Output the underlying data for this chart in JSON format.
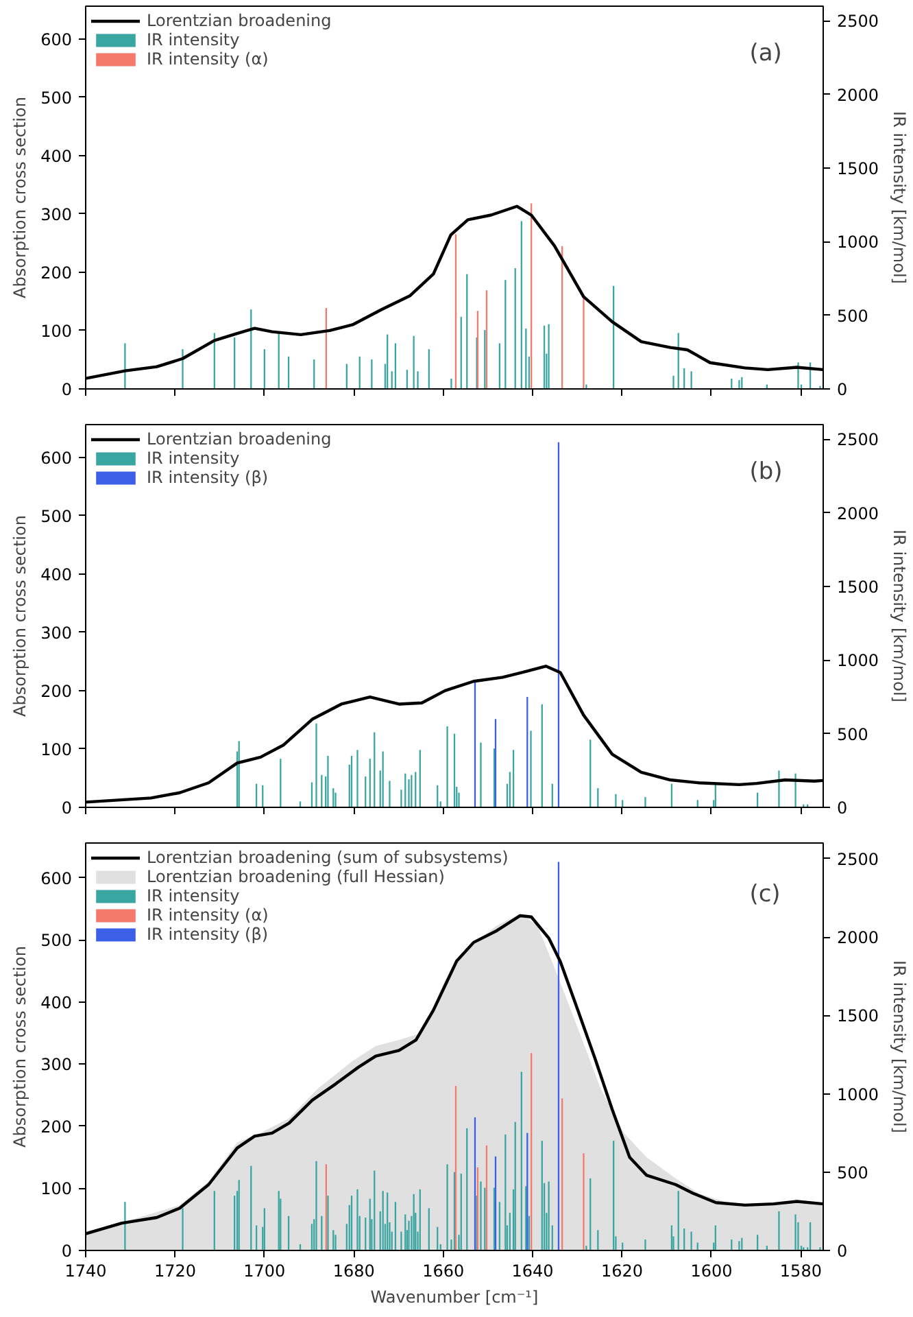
{
  "chart_data": [
    {
      "type": "bar",
      "ylabel": "Absorption cross section",
      "y2label": "IR intensity [km/mol]",
      "annotations": [
        "(a)"
      ],
      "xlim": [
        1740,
        1575
      ],
      "xticks": [
        1740,
        1720,
        1700,
        1680,
        1660,
        1640,
        1620,
        1600,
        1580
      ],
      "ylim": [
        0,
        656
      ],
      "yticks": [
        0,
        100,
        200,
        300,
        400,
        500,
        600
      ],
      "y2lim": [
        0,
        2600
      ],
      "y2ticks": [
        0,
        500,
        1000,
        1500,
        2000,
        2500
      ],
      "tick_labels": "y",
      "legend": "top left",
      "series": [
        {
          "type": "line",
          "name": "Lorentzian broadening",
          "color": "#000000",
          "x": [
            1740,
            1731.2,
            1724.1,
            1718.3,
            1711.2,
            1706.1,
            1702.2,
            1698.3,
            1691.9,
            1685.4,
            1680.3,
            1673.8,
            1667.4,
            1662.2,
            1658.3,
            1654.5,
            1649.3,
            1643.5,
            1640.3,
            1635.1,
            1628.6,
            1622.2,
            1615.7,
            1609.2,
            1605.4,
            1600.3,
            1592.5,
            1587.4,
            1580.9,
            1575
          ],
          "values": [
            18,
            31,
            38,
            52,
            83,
            95,
            104,
            98,
            93,
            100,
            110,
            136,
            160,
            197,
            264,
            290,
            298,
            313,
            298,
            245,
            158,
            115,
            81,
            71,
            67,
            45,
            36,
            33,
            37,
            33
          ]
        },
        {
          "axis": "y2",
          "name": "IR intensity",
          "color": "#3aa6a2",
          "x": [
            1731.2,
            1718.3,
            1711.2,
            1706.7,
            1703.0,
            1700.0,
            1696.8,
            1694.6,
            1688.9,
            1681.6,
            1678.7,
            1676.0,
            1673.0,
            1672.5,
            1671.5,
            1670.7,
            1668.1,
            1666.6,
            1665.7,
            1663.2,
            1658.2,
            1656.0,
            1654.7,
            1652.5,
            1650.7,
            1647.4,
            1646.1,
            1643.9,
            1642.5,
            1641.5,
            1640.8,
            1637.4,
            1636.9,
            1636.4,
            1628.0,
            1621.9,
            1608.5,
            1607.4,
            1606.1,
            1604.5,
            1595.5,
            1593.8,
            1593.2,
            1587.6,
            1580.6,
            1579.9,
            1577.9,
            1575.7
          ],
          "values": [
            310,
            270,
            380,
            350,
            540,
            270,
            380,
            220,
            200,
            170,
            220,
            200,
            170,
            370,
            120,
            310,
            130,
            360,
            120,
            270,
            70,
            490,
            780,
            350,
            400,
            310,
            740,
            820,
            1140,
            410,
            220,
            430,
            240,
            440,
            30,
            700,
            90,
            380,
            140,
            120,
            70,
            60,
            80,
            30,
            180,
            30,
            180,
            20
          ]
        },
        {
          "axis": "y2",
          "name": "IR intensity (α)",
          "color": "#f47a6b",
          "x": [
            1686.2,
            1657.2,
            1652.3,
            1650.3,
            1640.3,
            1633.4,
            1628.6
          ],
          "values": [
            550,
            1050,
            530,
            670,
            1260,
            970,
            620
          ]
        }
      ]
    },
    {
      "type": "bar",
      "ylabel": "Absorption cross section",
      "y2label": "IR intensity [km/mol]",
      "annotations": [
        "(b)"
      ],
      "xlim": [
        1740,
        1575
      ],
      "xticks": [
        1740,
        1720,
        1700,
        1680,
        1660,
        1640,
        1620,
        1600,
        1580
      ],
      "ylim": [
        0,
        656
      ],
      "yticks": [
        0,
        100,
        200,
        300,
        400,
        500,
        600
      ],
      "y2lim": [
        0,
        2600
      ],
      "y2ticks": [
        0,
        500,
        1000,
        1500,
        2000,
        2500
      ],
      "tick_labels": "y",
      "legend": "top left",
      "series": [
        {
          "type": "line",
          "name": "Lorentzian broadening",
          "color": "#000000",
          "x": [
            1740,
            1725.4,
            1719,
            1712.5,
            1706.1,
            1700.9,
            1695.7,
            1689.3,
            1682.8,
            1676.4,
            1669.9,
            1664.8,
            1659.6,
            1653.2,
            1646.7,
            1641.5,
            1637.0,
            1633.8,
            1628.6,
            1622.2,
            1615.7,
            1609.2,
            1602.8,
            1593.8,
            1589.9,
            1583.5,
            1577,
            1575
          ],
          "values": [
            9,
            16,
            25,
            42,
            76,
            86,
            107,
            151,
            177,
            189,
            177,
            179,
            200,
            216,
            223,
            233,
            242,
            231,
            158,
            91,
            60,
            47,
            42,
            39,
            41,
            47,
            45,
            46
          ]
        },
        {
          "axis": "y2",
          "name": "IR intensity",
          "color": "#3aa6a2",
          "x": [
            1706.1,
            1705.7,
            1701.8,
            1700.4,
            1696.4,
            1692.0,
            1689.4,
            1688.4,
            1687.2,
            1686.3,
            1685.8,
            1684.6,
            1684.1,
            1681.0,
            1680.5,
            1679.2,
            1677.4,
            1676.4,
            1675.4,
            1674.1,
            1673.5,
            1672.0,
            1669.4,
            1668.5,
            1667.7,
            1667.1,
            1666.2,
            1665.2,
            1661.3,
            1660.6,
            1659.1,
            1657.5,
            1657.0,
            1656.5,
            1651.6,
            1648.6,
            1645.7,
            1645.1,
            1644.3,
            1640.4,
            1637.9,
            1635.6,
            1627.1,
            1625.4,
            1621.4,
            1619.9,
            1614.8,
            1608.9,
            1603.1,
            1599.5,
            1599.1,
            1589.7,
            1584.9,
            1581.2,
            1579.4,
            1578.5
          ],
          "values": [
            380,
            450,
            160,
            150,
            330,
            40,
            170,
            570,
            220,
            210,
            350,
            130,
            100,
            290,
            350,
            390,
            210,
            330,
            510,
            250,
            380,
            180,
            120,
            230,
            190,
            220,
            240,
            390,
            150,
            40,
            550,
            500,
            140,
            100,
            440,
            400,
            160,
            240,
            390,
            520,
            700,
            160,
            460,
            130,
            90,
            50,
            70,
            160,
            50,
            50,
            160,
            100,
            250,
            230,
            20,
            20
          ]
        },
        {
          "axis": "y2",
          "name": "IR intensity (β)",
          "color": "#3b5fe6",
          "x": [
            1652.9,
            1648.3,
            1641.2,
            1634.2
          ],
          "values": [
            850,
            600,
            750,
            2480
          ]
        }
      ]
    },
    {
      "type": "bar",
      "xlabel": "Wavenumber [cm⁻¹]",
      "ylabel": "Absorption cross section",
      "y2label": "IR intensity [km/mol]",
      "annotations": [
        "(c)"
      ],
      "xlim": [
        1740,
        1575
      ],
      "xticks": [
        1740,
        1720,
        1700,
        1680,
        1660,
        1640,
        1620,
        1600,
        1580
      ],
      "ylim": [
        0,
        656
      ],
      "yticks": [
        0,
        100,
        200,
        300,
        400,
        500,
        600
      ],
      "y2lim": [
        0,
        2600
      ],
      "y2ticks": [
        0,
        500,
        1000,
        1500,
        2000,
        2500
      ],
      "legend": "top left",
      "series": [
        {
          "type": "line",
          "name": "Lorentzian broadening (sum of subsystems)",
          "color": "#000000",
          "x": [
            1740,
            1731.9,
            1724.1,
            1719,
            1712.5,
            1706.1,
            1702.2,
            1698.3,
            1694.5,
            1689.3,
            1684.1,
            1679.0,
            1675.1,
            1669.9,
            1666.1,
            1662.2,
            1657.0,
            1653.2,
            1648.0,
            1642.8,
            1640.3,
            1636.4,
            1633.8,
            1629.9,
            1626.1,
            1622.2,
            1618.3,
            1614.5,
            1608.0,
            1604.1,
            1599.0,
            1592.5,
            1586.1,
            1580.9,
            1575
          ],
          "values": [
            27,
            44,
            53,
            68,
            106,
            165,
            184,
            189,
            205,
            242,
            268,
            295,
            313,
            322,
            339,
            387,
            466,
            496,
            515,
            539,
            537,
            503,
            465,
            387,
            310,
            227,
            150,
            121,
            106,
            92,
            77,
            73,
            75,
            79,
            75
          ]
        },
        {
          "type": "area",
          "name": "Lorentzian broadening (full Hessian)",
          "color": "#e0e0e0",
          "x": [
            1740,
            1719,
            1712.5,
            1706.1,
            1700.9,
            1694.5,
            1688,
            1680.3,
            1675.1,
            1669.9,
            1664.8,
            1659.6,
            1654.5,
            1648,
            1642.8,
            1638.9,
            1635.1,
            1629.9,
            1624.8,
            1619.6,
            1614.5,
            1608,
            1602.8,
            1596.4,
            1589.9,
            1580.9,
            1575
          ],
          "values": [
            27,
            73,
            111,
            174,
            189,
            213,
            261,
            305,
            329,
            339,
            350,
            435,
            489,
            523,
            542,
            523,
            455,
            358,
            261,
            189,
            150,
            116,
            92,
            77,
            73,
            79,
            77
          ]
        },
        {
          "axis": "y2",
          "name": "IR intensity",
          "color": "#3aa6a2",
          "x": [
            1731.2,
            1718.3,
            1711.2,
            1706.7,
            1706.1,
            1705.7,
            1703.0,
            1701.8,
            1700.4,
            1700.0,
            1696.8,
            1696.4,
            1694.6,
            1692.0,
            1689.4,
            1688.9,
            1688.4,
            1687.2,
            1686.3,
            1685.8,
            1684.6,
            1684.1,
            1681.6,
            1681.0,
            1680.5,
            1679.2,
            1678.7,
            1677.4,
            1676.4,
            1676.0,
            1675.4,
            1674.1,
            1673.5,
            1673.0,
            1672.5,
            1672.0,
            1671.5,
            1670.7,
            1669.4,
            1668.5,
            1668.1,
            1667.7,
            1667.1,
            1666.6,
            1666.2,
            1665.7,
            1665.2,
            1663.2,
            1661.3,
            1660.6,
            1659.1,
            1658.2,
            1657.5,
            1657.0,
            1656.5,
            1656.0,
            1654.7,
            1652.5,
            1651.6,
            1650.7,
            1648.6,
            1647.4,
            1646.1,
            1645.7,
            1645.1,
            1644.3,
            1643.9,
            1642.5,
            1641.5,
            1640.8,
            1640.4,
            1637.9,
            1637.4,
            1636.9,
            1636.4,
            1635.6,
            1628.0,
            1627.1,
            1625.4,
            1621.9,
            1621.4,
            1619.9,
            1614.8,
            1608.9,
            1608.5,
            1607.4,
            1606.1,
            1604.5,
            1603.1,
            1599.5,
            1599.1,
            1595.5,
            1593.8,
            1593.2,
            1589.7,
            1587.6,
            1584.9,
            1581.2,
            1580.6,
            1579.9,
            1579.4,
            1578.5,
            1577.9,
            1575.7
          ],
          "values": [
            310,
            270,
            380,
            350,
            380,
            450,
            540,
            160,
            150,
            270,
            380,
            330,
            220,
            40,
            170,
            200,
            570,
            220,
            null,
            350,
            130,
            100,
            170,
            290,
            350,
            390,
            220,
            210,
            330,
            200,
            510,
            250,
            380,
            170,
            370,
            180,
            120,
            310,
            120,
            230,
            130,
            190,
            220,
            360,
            240,
            120,
            390,
            270,
            150,
            40,
            550,
            70,
            500,
            null,
            100,
            490,
            780,
            350,
            440,
            400,
            400,
            310,
            740,
            160,
            240,
            390,
            820,
            1140,
            410,
            220,
            null,
            700,
            430,
            240,
            440,
            160,
            30,
            460,
            130,
            700,
            90,
            50,
            70,
            160,
            90,
            380,
            140,
            120,
            50,
            50,
            160,
            70,
            60,
            80,
            100,
            30,
            250,
            230,
            180,
            30,
            20,
            20,
            180,
            20
          ]
        },
        {
          "axis": "y2",
          "name": "IR intensity (α)",
          "color": "#f47a6b",
          "x": [
            1686.2,
            1657.2,
            1652.3,
            1650.3,
            1640.3,
            1633.4,
            1628.6
          ],
          "values": [
            550,
            1050,
            530,
            670,
            1260,
            970,
            620
          ]
        },
        {
          "axis": "y2",
          "name": "IR intensity (β)",
          "color": "#3b5fe6",
          "x": [
            1652.9,
            1648.3,
            1641.2,
            1634.2
          ],
          "values": [
            850,
            600,
            750,
            2480
          ]
        }
      ]
    }
  ]
}
